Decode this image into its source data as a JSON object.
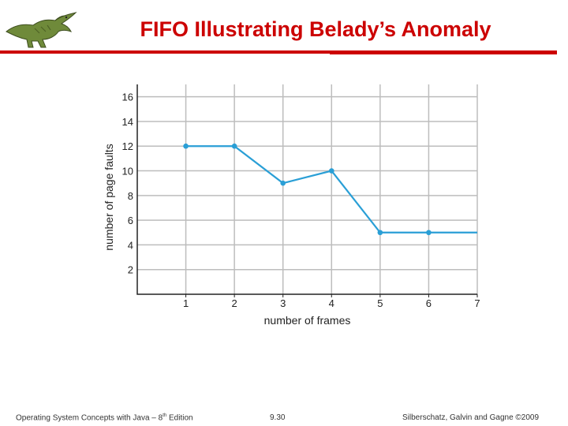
{
  "slide": {
    "title": "FIFO Illustrating Belady’s Anomaly",
    "accent_color": "#cc0000",
    "logo_icon": "dinosaur-icon"
  },
  "chart_data": {
    "type": "line",
    "x": [
      1,
      2,
      3,
      4,
      5,
      6,
      7
    ],
    "series": [
      {
        "values": [
          12,
          12,
          9,
          10,
          5,
          5,
          5
        ],
        "markers": [
          true,
          true,
          true,
          true,
          true,
          true,
          false
        ],
        "color": "#2a9fd6"
      }
    ],
    "title": "",
    "xlabel": "number of frames",
    "ylabel": "number of page faults",
    "xticks": [
      "1",
      "2",
      "3",
      "4",
      "5",
      "6",
      "7"
    ],
    "yticks": [
      "2",
      "4",
      "6",
      "8",
      "10",
      "12",
      "14",
      "16"
    ],
    "xlim": [
      0,
      7
    ],
    "ylim": [
      0,
      17
    ],
    "grid": true,
    "legend": "none"
  },
  "footer": {
    "book_prefix": "Operating System Concepts with Java – 8",
    "book_sup": "th",
    "book_suffix": " Edition",
    "page": "9.30",
    "copyright": "Silberschatz, Galvin and Gagne ©2009"
  }
}
